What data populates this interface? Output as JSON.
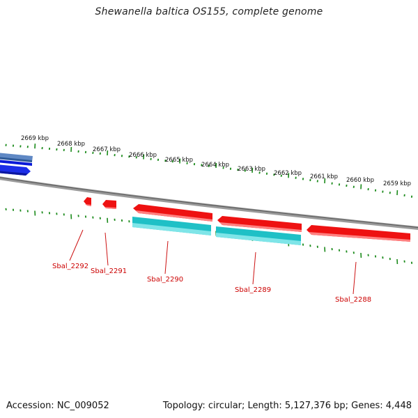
{
  "title": "Shewanella baltica OS155, complete genome",
  "footer": {
    "accession": "Accession: NC_009052",
    "summary": "Topology: circular; Length: 5,127,376 bp; Genes: 4,448"
  },
  "ruler_labels": [
    "2669 kbp",
    "2668 kbp",
    "2667 kbp",
    "2666 kbp",
    "2665 kbp",
    "2664 kbp",
    "2663 kbp",
    "2662 kbp",
    "2661 kbp",
    "2660 kbp",
    "2659 kbp"
  ],
  "genes": [
    {
      "label": "Sbal_2292",
      "track": "reverse",
      "color": "#ee0000"
    },
    {
      "label": "Sbal_2291",
      "track": "reverse",
      "color": "#ee0000"
    },
    {
      "label": "Sbal_2290",
      "track": "reverse",
      "color": "#ee0000"
    },
    {
      "label": "Sbal_2289",
      "track": "reverse",
      "color": "#ee0000"
    },
    {
      "label": "Sbal_2288",
      "track": "reverse",
      "color": "#ee0000"
    }
  ],
  "colors": {
    "forward_gene": "#1428e0",
    "forward_rna": "#3a6fb0",
    "reverse_gene": "#ee0000",
    "reverse_rna": "#22c4c8",
    "backbone": "#8a8a8a",
    "ticks": "#1a8a1a",
    "label": "#cc0000"
  }
}
